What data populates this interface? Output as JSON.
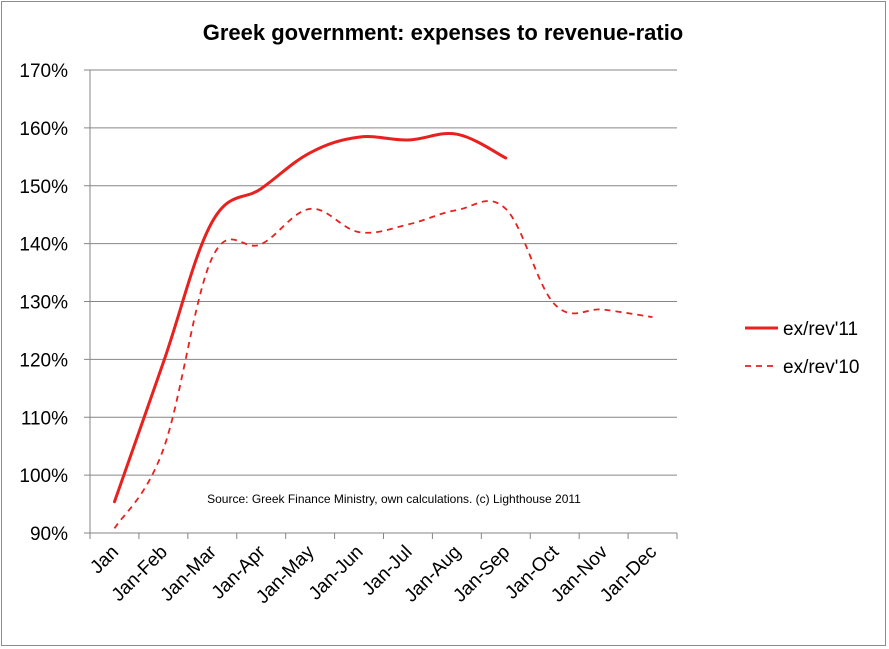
{
  "chart_data": {
    "type": "line",
    "title": "Greek government: expenses to revenue-ratio",
    "xlabel": "",
    "ylabel": "",
    "categories": [
      "Jan",
      "Jan-Feb",
      "Jan-Mar",
      "Jan-Apr",
      "Jan-May",
      "Jan-Jun",
      "Jan-Jul",
      "Jan-Aug",
      "Jan-Sep",
      "Jan-Oct",
      "Jan-Nov",
      "Jan-Dec"
    ],
    "y_ticks": [
      "90%",
      "100%",
      "110%",
      "120%",
      "130%",
      "140%",
      "150%",
      "160%",
      "170%"
    ],
    "ylim": [
      90,
      170
    ],
    "grid": true,
    "legend_position": "right",
    "annotation": "Source: Greek Finance Ministry, own calculations. (c) Lighthouse 2011",
    "series": [
      {
        "name": "ex/rev'11",
        "color": "#e8201e",
        "style": "solid",
        "values": [
          95.4,
          119.5,
          143.8,
          149.5,
          155.7,
          158.4,
          157.9,
          158.9,
          154.8,
          null,
          null,
          null
        ]
      },
      {
        "name": "ex/rev'10",
        "color": "#e8201e",
        "style": "dashed",
        "values": [
          90.8,
          104.5,
          137.6,
          139.9,
          146.0,
          142.0,
          143.3,
          145.8,
          146.0,
          129.5,
          128.6,
          127.3
        ]
      }
    ]
  }
}
